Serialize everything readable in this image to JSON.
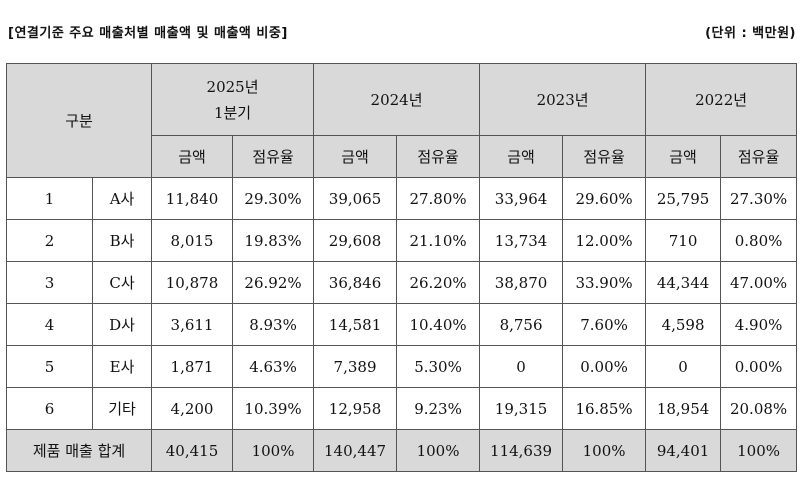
{
  "caption": {
    "title": "[연결기준 주요 매출처별 매출액 및 매출액 비중]",
    "unit": "(단위 : 백만원)"
  },
  "header": {
    "category": "구분",
    "years": [
      {
        "line1": "2025년",
        "line2": "1분기"
      },
      {
        "line1": "2024년",
        "line2": ""
      },
      {
        "line1": "2023년",
        "line2": ""
      },
      {
        "line1": "2022년",
        "line2": ""
      }
    ],
    "sub": {
      "amount": "금액",
      "share": "점유율"
    }
  },
  "rows": [
    {
      "no": "1",
      "name": "A사",
      "cells": [
        "11,840",
        "29.30%",
        "39,065",
        "27.80%",
        "33,964",
        "29.60%",
        "25,795",
        "27.30%"
      ]
    },
    {
      "no": "2",
      "name": "B사",
      "cells": [
        "8,015",
        "19.83%",
        "29,608",
        "21.10%",
        "13,734",
        "12.00%",
        "710",
        "0.80%"
      ]
    },
    {
      "no": "3",
      "name": "C사",
      "cells": [
        "10,878",
        "26.92%",
        "36,846",
        "26.20%",
        "38,870",
        "33.90%",
        "44,344",
        "47.00%"
      ]
    },
    {
      "no": "4",
      "name": "D사",
      "cells": [
        "3,611",
        "8.93%",
        "14,581",
        "10.40%",
        "8,756",
        "7.60%",
        "4,598",
        "4.90%"
      ]
    },
    {
      "no": "5",
      "name": "E사",
      "cells": [
        "1,871",
        "4.63%",
        "7,389",
        "5.30%",
        "0",
        "0.00%",
        "0",
        "0.00%"
      ]
    },
    {
      "no": "6",
      "name": "기타",
      "cells": [
        "4,200",
        "10.39%",
        "12,958",
        "9.23%",
        "19,315",
        "16.85%",
        "18,954",
        "20.08%"
      ]
    }
  ],
  "total": {
    "label": "제품 매출 합계",
    "cells": [
      "40,415",
      "100%",
      "140,447",
      "100%",
      "114,639",
      "100%",
      "94,401",
      "100%"
    ]
  }
}
